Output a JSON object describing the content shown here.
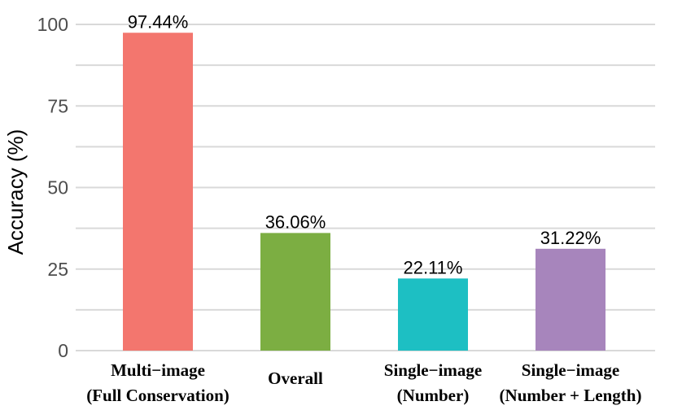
{
  "chart_data": {
    "type": "bar",
    "title": "",
    "xlabel": "",
    "ylabel": "Accuracy (%)",
    "ylim": [
      0,
      100
    ],
    "yticks": [
      0,
      25,
      50,
      75,
      100
    ],
    "grid": true,
    "categories": [
      [
        "Multi−image",
        "(Full Conservation)"
      ],
      [
        "Overall"
      ],
      [
        "Single−image",
        "(Number)"
      ],
      [
        "Single−image",
        "(Number + Length)"
      ]
    ],
    "values": [
      97.44,
      36.06,
      22.11,
      31.22
    ],
    "data_labels": [
      "97.44%",
      "36.06%",
      "22.11%",
      "31.22%"
    ],
    "colors": [
      "#f3766e",
      "#7cae42",
      "#1dbfc3",
      "#a785bc"
    ]
  }
}
